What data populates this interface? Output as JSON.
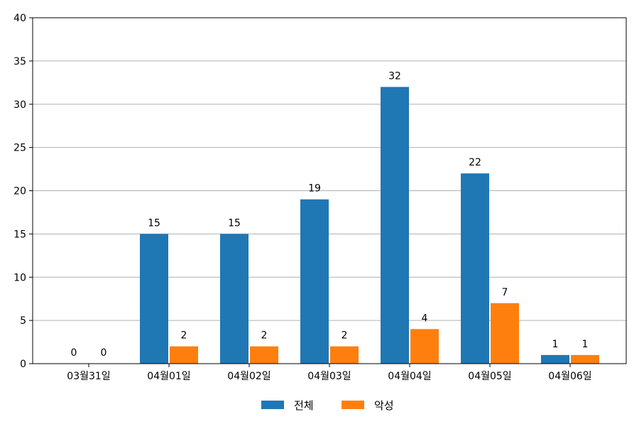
{
  "chart_data": {
    "type": "bar",
    "categories": [
      "03월31일",
      "04월01일",
      "04월02일",
      "04월03일",
      "04월04일",
      "04월05일",
      "04월06일"
    ],
    "series": [
      {
        "name": "전체",
        "color": "#1f77b4",
        "values": [
          0,
          15,
          15,
          19,
          32,
          22,
          1
        ]
      },
      {
        "name": "악성",
        "color": "#ff7f0e",
        "values": [
          0,
          2,
          2,
          2,
          4,
          7,
          1
        ]
      }
    ],
    "title": "",
    "xlabel": "",
    "ylabel": "",
    "ylim": [
      0,
      40
    ],
    "yticks": [
      0,
      5,
      10,
      15,
      20,
      25,
      30,
      35,
      40
    ],
    "grid": "y",
    "legend_placement": "bottom-center"
  }
}
